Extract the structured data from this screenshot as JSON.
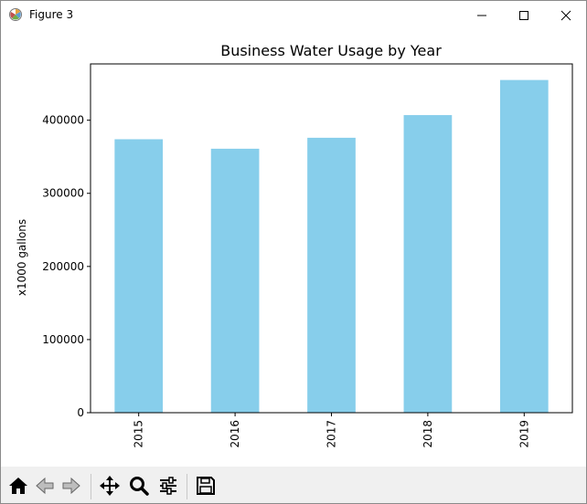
{
  "window": {
    "title": "Figure 3",
    "controls": {
      "minimize": "minimize",
      "maximize": "maximize",
      "close": "close"
    }
  },
  "toolbar": {
    "buttons": [
      {
        "icon": "home-icon",
        "label": "home"
      },
      {
        "icon": "back-arrow-icon",
        "label": "back"
      },
      {
        "icon": "forward-arrow-icon",
        "label": "forward"
      },
      {
        "icon": "pan-move-icon",
        "label": "pan"
      },
      {
        "icon": "zoom-magnifier-icon",
        "label": "zoom"
      },
      {
        "icon": "configure-subplots-icon",
        "label": "configure subplots"
      },
      {
        "icon": "save-floppy-icon",
        "label": "save"
      }
    ]
  },
  "chart_data": {
    "type": "bar",
    "title": "Business Water Usage by Year",
    "xlabel": "",
    "ylabel": "x1000 gallons",
    "categories": [
      "2015",
      "2016",
      "2017",
      "2018",
      "2019"
    ],
    "values": [
      374000,
      361000,
      376000,
      407000,
      455000
    ],
    "ylim": [
      0,
      477000
    ],
    "yticks": [
      0,
      100000,
      200000,
      300000,
      400000
    ],
    "ytick_labels": [
      "0",
      "100000",
      "200000",
      "300000",
      "400000"
    ],
    "bar_color": "#87ceeb",
    "grid": false,
    "legend": "none"
  }
}
